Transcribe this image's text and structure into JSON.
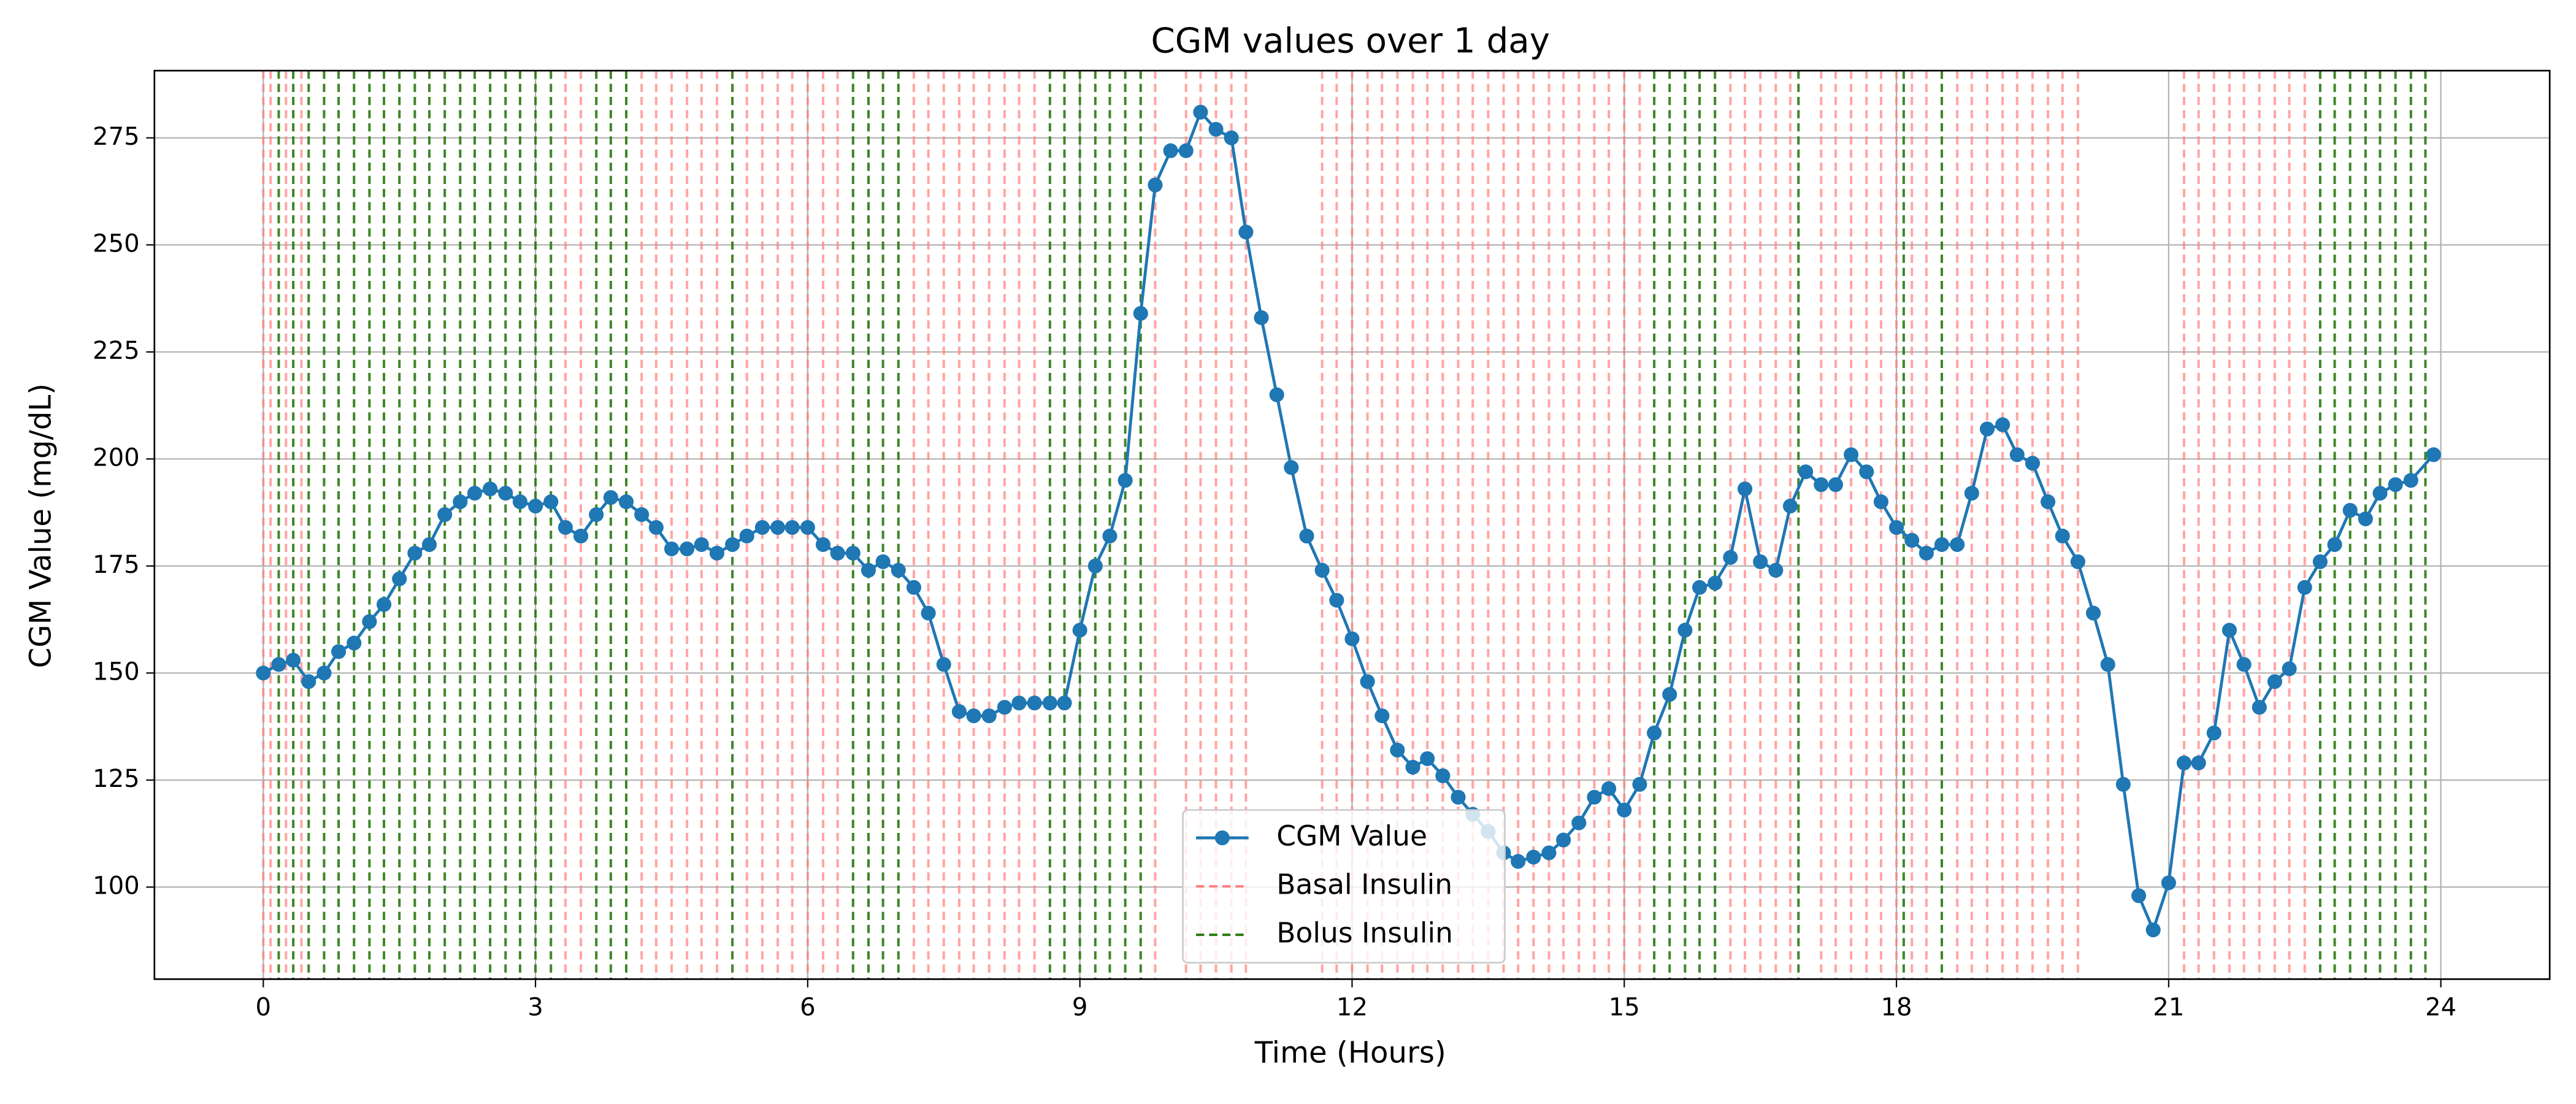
{
  "chart_data": {
    "type": "line",
    "title": "CGM values over 1 day",
    "x_label": "Time (Hours)",
    "y_label": "CGM Value (mg/dL)",
    "xlim": [
      -1.2,
      25.2
    ],
    "ylim": [
      78.5,
      290.7
    ],
    "xticks": [
      0,
      3,
      6,
      9,
      12,
      15,
      18,
      21,
      24
    ],
    "yticks": [
      100,
      125,
      150,
      175,
      200,
      225,
      250,
      275
    ],
    "grid": true,
    "legend": "lower center",
    "series": [
      {
        "name": "CGM Value",
        "color": "#1f77b4",
        "x": [
          0,
          0.17,
          0.33,
          0.5,
          0.67,
          0.83,
          1,
          1.17,
          1.33,
          1.5,
          1.67,
          1.83,
          2,
          2.17,
          2.33,
          2.5,
          2.67,
          2.83,
          3,
          3.17,
          3.33,
          3.5,
          3.67,
          3.83,
          4,
          4.17,
          4.33,
          4.5,
          4.67,
          4.83,
          5,
          5.17,
          5.33,
          5.5,
          5.67,
          5.83,
          6,
          6.17,
          6.33,
          6.5,
          6.67,
          6.83,
          7,
          7.17,
          7.33,
          7.5,
          7.67,
          7.83,
          8,
          8.17,
          8.33,
          8.5,
          8.67,
          8.83,
          9,
          9.17,
          9.33,
          9.5,
          9.67,
          9.83,
          10,
          10.17,
          10.33,
          10.5,
          10.67,
          10.83,
          11,
          11.17,
          11.33,
          11.5,
          11.67,
          11.83,
          12,
          12.17,
          12.33,
          12.5,
          12.67,
          12.83,
          13,
          13.17,
          13.33,
          13.5,
          13.67,
          13.83,
          14,
          14.17,
          14.33,
          14.5,
          14.67,
          14.83,
          15,
          15.17,
          15.33,
          15.5,
          15.67,
          15.83,
          16,
          16.17,
          16.33,
          16.5,
          16.67,
          16.83,
          17,
          17.17,
          17.33,
          17.5,
          17.67,
          17.83,
          18,
          18.17,
          18.33,
          18.5,
          18.67,
          18.83,
          19,
          19.17,
          19.33,
          19.5,
          19.67,
          19.83,
          20,
          20.17,
          20.33,
          20.5,
          20.67,
          20.83,
          21,
          21.17,
          21.33,
          21.5,
          21.67,
          21.83,
          22,
          22.17,
          22.33,
          22.5,
          22.67,
          22.83,
          23,
          23.17,
          23.33,
          23.5,
          23.67,
          23.92
        ],
        "values": [
          150,
          152,
          153,
          148,
          150,
          155,
          157,
          162,
          166,
          172,
          178,
          180,
          187,
          190,
          192,
          193,
          192,
          190,
          189,
          190,
          184,
          182,
          187,
          191,
          190,
          187,
          184,
          179,
          179,
          180,
          178,
          180,
          182,
          184,
          184,
          184,
          184,
          180,
          178,
          178,
          174,
          176,
          174,
          170,
          164,
          152,
          141,
          140,
          140,
          142,
          143,
          143,
          143,
          143,
          160,
          175,
          182,
          195,
          234,
          264,
          272,
          272,
          281,
          277,
          275,
          253,
          233,
          215,
          198,
          182,
          174,
          167,
          158,
          148,
          140,
          132,
          128,
          130,
          126,
          121,
          117,
          113,
          108,
          106,
          107,
          108,
          111,
          115,
          121,
          123,
          118,
          124,
          136,
          145,
          160,
          170,
          171,
          177,
          193,
          176,
          174,
          189,
          197,
          194,
          194,
          201,
          197,
          190,
          184,
          181,
          178,
          180,
          180,
          192,
          207,
          208,
          201,
          199,
          190,
          182,
          176,
          164,
          152,
          124,
          98,
          90,
          101,
          129,
          129,
          136,
          160,
          152,
          142,
          148,
          151,
          170,
          176,
          180,
          188,
          186,
          192,
          194,
          195,
          201
        ]
      }
    ],
    "vlines": [
      {
        "name": "Basal Insulin",
        "color": "#ff7f7f",
        "x": [
          0,
          0.08,
          0.25,
          0.42,
          3.33,
          3.5,
          4.17,
          4.33,
          4.5,
          4.67,
          4.83,
          5,
          5.33,
          5.5,
          5.67,
          5.83,
          6,
          6.17,
          6.33,
          7.17,
          7.33,
          7.5,
          7.67,
          7.83,
          8,
          8.17,
          8.33,
          8.5,
          9.83,
          10.17,
          10.33,
          10.5,
          10.67,
          10.83,
          11.67,
          11.83,
          12,
          12.17,
          12.33,
          12.5,
          12.67,
          12.83,
          13,
          13.17,
          13.33,
          13.5,
          13.67,
          13.83,
          14,
          14.17,
          14.33,
          14.5,
          14.67,
          14.83,
          15,
          15.17,
          16.17,
          16.33,
          16.5,
          16.67,
          16.83,
          17.17,
          17.33,
          17.5,
          17.67,
          17.83,
          18,
          18.17,
          18.33,
          18.67,
          18.83,
          19,
          19.17,
          19.33,
          19.5,
          19.67,
          19.83,
          20,
          21.17,
          21.33,
          21.5,
          21.67,
          21.83,
          22,
          22.17,
          22.33,
          22.5
        ]
      },
      {
        "name": "Bolus Insulin",
        "color": "#2a7a10",
        "x": [
          0.17,
          0.33,
          0.5,
          0.67,
          0.83,
          1,
          1.17,
          1.33,
          1.5,
          1.67,
          1.83,
          2,
          2.17,
          2.33,
          2.5,
          2.67,
          2.83,
          3,
          3.17,
          3.67,
          3.83,
          4,
          5.17,
          6.5,
          6.67,
          6.83,
          7,
          8.67,
          8.83,
          9,
          9.17,
          9.33,
          9.5,
          9.67,
          15.33,
          15.5,
          15.67,
          15.83,
          16,
          16.92,
          18.08,
          18.5,
          22.67,
          22.83,
          23,
          23.17,
          23.33,
          23.5,
          23.67,
          23.83
        ]
      }
    ]
  }
}
